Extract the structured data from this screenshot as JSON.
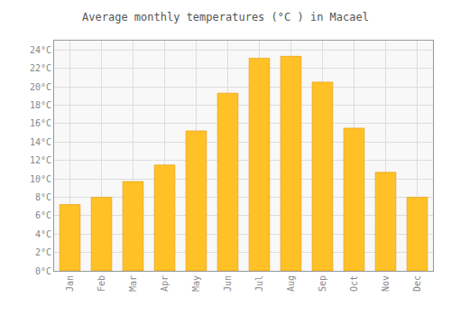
{
  "chart_data": {
    "type": "bar",
    "title": "Average monthly temperatures (°C ) in Macael",
    "categories": [
      "Jan",
      "Feb",
      "Mar",
      "Apr",
      "May",
      "Jun",
      "Jul",
      "Aug",
      "Sep",
      "Oct",
      "Nov",
      "Dec"
    ],
    "values": [
      7.2,
      8.0,
      9.7,
      11.5,
      15.2,
      19.3,
      23.1,
      23.3,
      20.5,
      15.5,
      10.7,
      8.0
    ],
    "color": "#FFC125",
    "ylim": [
      0,
      25
    ],
    "yticks": [
      {
        "value": 0,
        "label": "0°C"
      },
      {
        "value": 2,
        "label": "2°C"
      },
      {
        "value": 4,
        "label": "4°C"
      },
      {
        "value": 6,
        "label": "6°C"
      },
      {
        "value": 8,
        "label": "8°C"
      },
      {
        "value": 10,
        "label": "10°C"
      },
      {
        "value": 12,
        "label": "12°C"
      },
      {
        "value": 14,
        "label": "14°C"
      },
      {
        "value": 16,
        "label": "16°C"
      },
      {
        "value": 18,
        "label": "18°C"
      },
      {
        "value": 20,
        "label": "20°C"
      },
      {
        "value": 22,
        "label": "22°C"
      },
      {
        "value": 24,
        "label": "24°C"
      }
    ],
    "grid": true
  }
}
